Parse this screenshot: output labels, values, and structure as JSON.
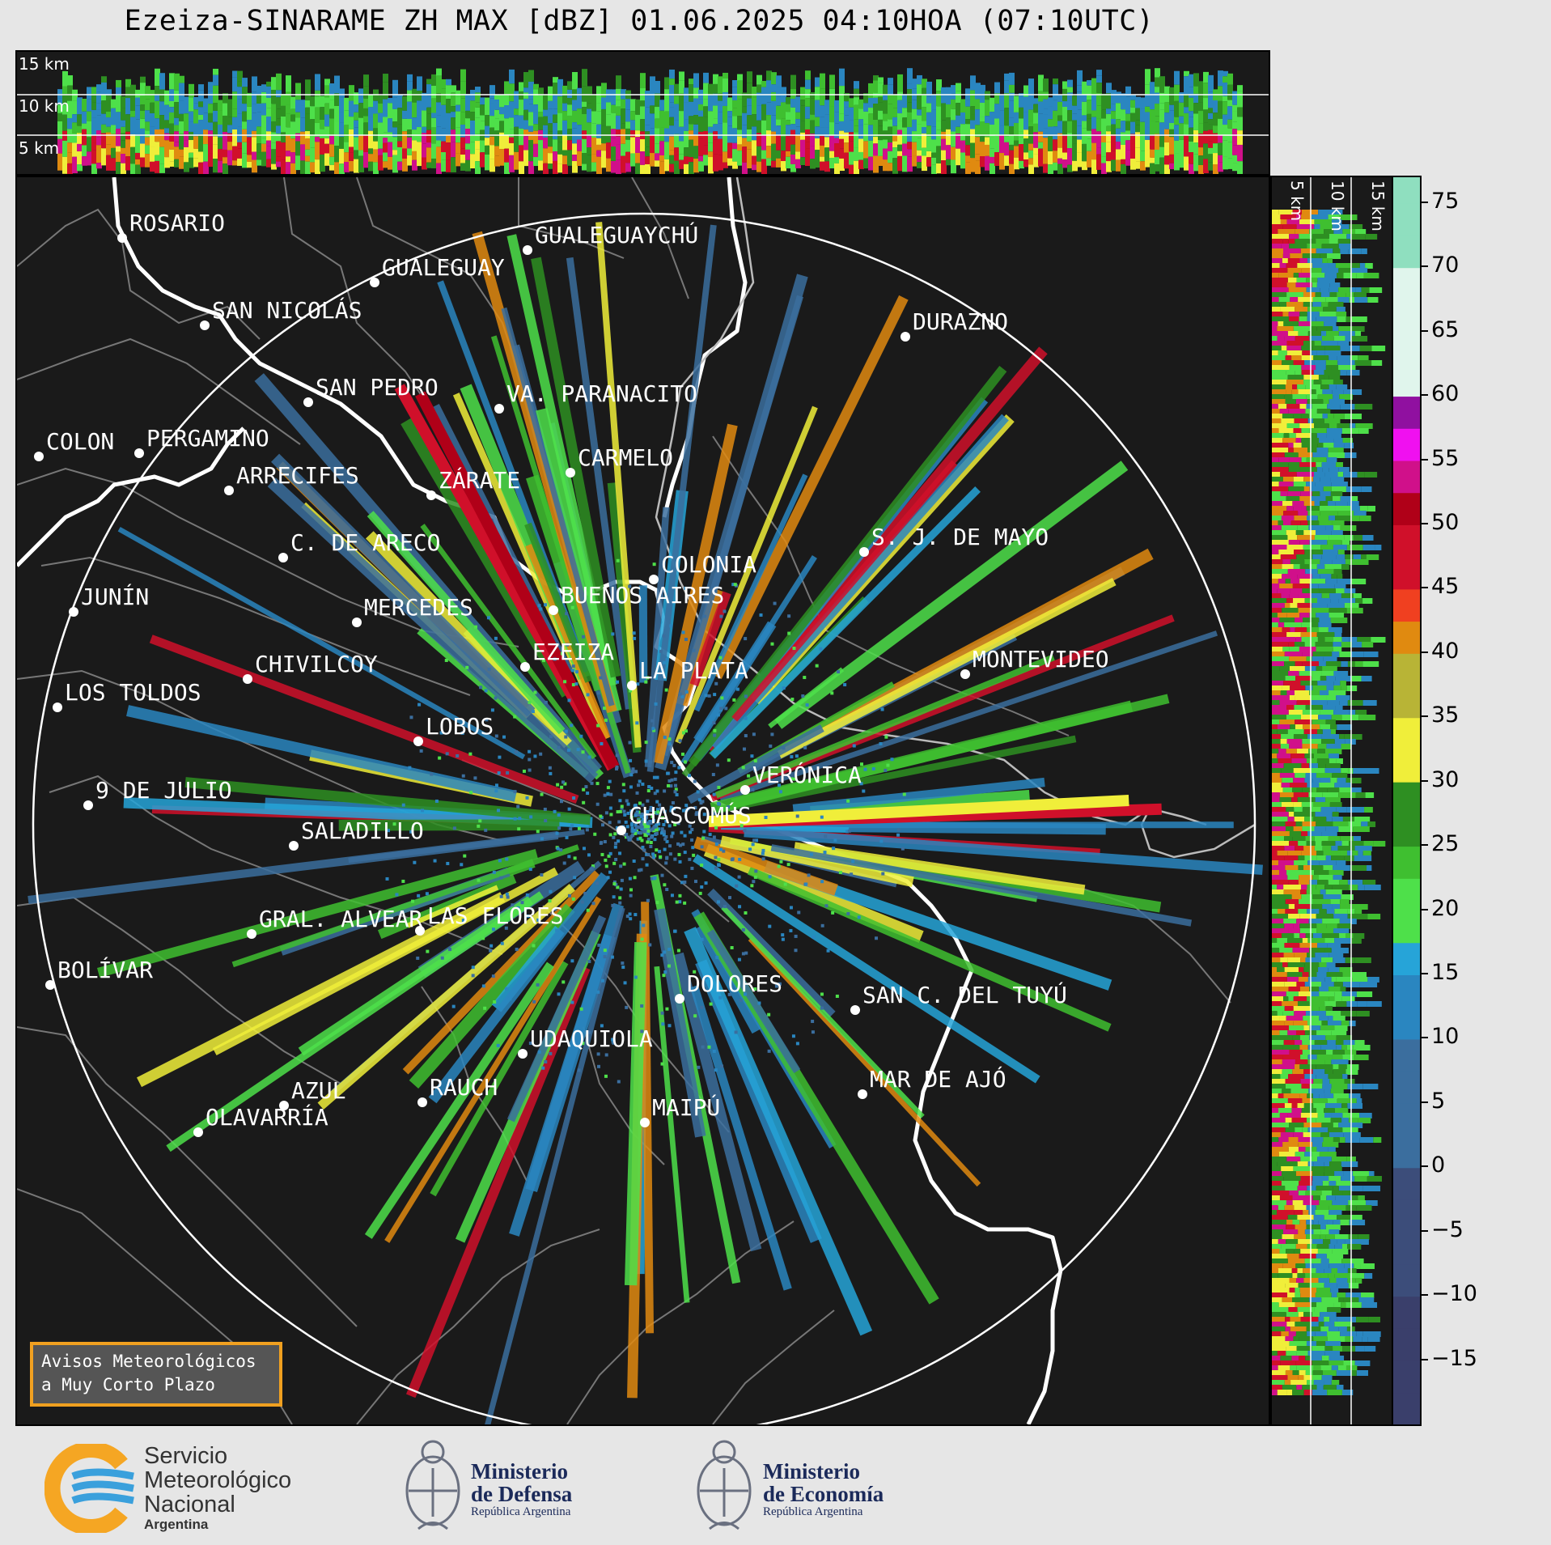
{
  "title": "Ezeiza-SINARAME ZH MAX [dBZ] 01.06.2025 04:10HOA (07:10UTC)",
  "top_panel": {
    "height_labels": [
      "15 km",
      "10 km",
      "5 km"
    ]
  },
  "side_panel": {
    "height_labels": [
      "5 km",
      "10 km",
      "15 km"
    ]
  },
  "colorbar": {
    "ticks": [
      "75",
      "70",
      "65",
      "60",
      "55",
      "50",
      "45",
      "40",
      "35",
      "30",
      "25",
      "20",
      "15",
      "10",
      "5",
      "0",
      "−5",
      "−10",
      "−15"
    ],
    "min": -20,
    "max": 77
  },
  "map": {
    "cities": [
      {
        "name": "ROSARIO"
      },
      {
        "name": "GUALEGUAYCHÚ"
      },
      {
        "name": "GUALEGUAY"
      },
      {
        "name": "SAN NICOLÁS"
      },
      {
        "name": "DURAZNO"
      },
      {
        "name": "SAN PEDRO"
      },
      {
        "name": "VA. PARANACITO"
      },
      {
        "name": "COLON"
      },
      {
        "name": "PERGAMINO"
      },
      {
        "name": "CARMELO"
      },
      {
        "name": "ARRECIFES"
      },
      {
        "name": "ZÁRATE"
      },
      {
        "name": "S. J. DE MAYO"
      },
      {
        "name": "C. DE ARECO"
      },
      {
        "name": "COLONIA"
      },
      {
        "name": "JUNÍN"
      },
      {
        "name": "BUENOS AIRES"
      },
      {
        "name": "MERCEDES"
      },
      {
        "name": "EZEIZA"
      },
      {
        "name": "MONTEVIDEO"
      },
      {
        "name": "CHIVILCOY"
      },
      {
        "name": "LA PLATA"
      },
      {
        "name": "LOS TOLDOS"
      },
      {
        "name": "LOBOS"
      },
      {
        "name": "VERÓNICA"
      },
      {
        "name": "9 DE JULIO"
      },
      {
        "name": "CHASCOMÚS"
      },
      {
        "name": "SALADILLO"
      },
      {
        "name": "GRAL. ALVEAR"
      },
      {
        "name": "LAS FLORES"
      },
      {
        "name": "BOLÍVAR"
      },
      {
        "name": "DOLORES"
      },
      {
        "name": "SAN C. DEL TUYÚ"
      },
      {
        "name": "UDAQUIOLA"
      },
      {
        "name": "MAR DE AJÓ"
      },
      {
        "name": "AZUL"
      },
      {
        "name": "RAUCH"
      },
      {
        "name": "OLAVARRÍA"
      },
      {
        "name": "MAIPÚ"
      }
    ]
  },
  "notice": {
    "line1": "Avisos Meteorológicos",
    "line2": "a Muy Corto Plazo"
  },
  "footer": {
    "smn": {
      "line1": "Servicio",
      "line2": "Meteorológico",
      "line3": "Nacional",
      "line4": "Argentina"
    },
    "defensa": {
      "line1": "Ministerio",
      "line2": "de Defensa",
      "line3": "República Argentina"
    },
    "economia": {
      "line1": "Ministerio",
      "line2": "de Economía",
      "line3": "República Argentina"
    }
  }
}
